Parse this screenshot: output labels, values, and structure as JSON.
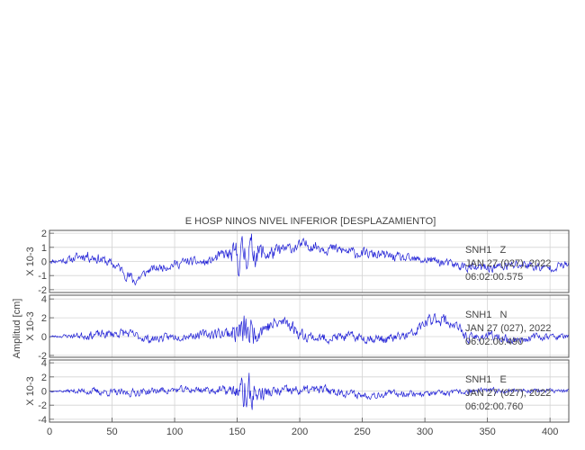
{
  "chart_data": {
    "type": "line",
    "title": "E HOSP NINOS NIVEL INFERIOR [DESPLAZAMIENTO]",
    "ylabel": "Amplitud [cm]",
    "xlabel": "",
    "xlim": [
      0,
      415
    ],
    "xticks": [
      0,
      50,
      100,
      150,
      200,
      250,
      300,
      350,
      400
    ],
    "grid": true,
    "line_color": "#1f1fd6",
    "panels": [
      {
        "channel": "SNH1",
        "component": "Z",
        "date": "JAN 27 (027), 2022",
        "time": "06:02:00.575",
        "scale_label": "X 10-3",
        "ylim": [
          -2.2,
          2.2
        ],
        "yticks": [
          -2,
          -1,
          0,
          1,
          2
        ],
        "seed": 11,
        "env": [
          [
            0,
            0.15
          ],
          [
            10,
            0.25
          ],
          [
            30,
            0.45
          ],
          [
            55,
            0.35
          ],
          [
            66,
            0.5
          ],
          [
            80,
            0.3
          ],
          [
            100,
            0.35
          ],
          [
            130,
            0.35
          ],
          [
            145,
            0.6
          ],
          [
            150,
            1.4
          ],
          [
            160,
            1.3
          ],
          [
            172,
            0.7
          ],
          [
            190,
            0.45
          ],
          [
            210,
            0.45
          ],
          [
            250,
            0.4
          ],
          [
            290,
            0.35
          ],
          [
            330,
            0.35
          ],
          [
            370,
            0.4
          ],
          [
            415,
            0.3
          ]
        ],
        "trend": [
          [
            0,
            0
          ],
          [
            15,
            0.1
          ],
          [
            28,
            0.45
          ],
          [
            40,
            0.2
          ],
          [
            55,
            -0.4
          ],
          [
            68,
            -1.4
          ],
          [
            80,
            -0.6
          ],
          [
            95,
            -0.3
          ],
          [
            110,
            0
          ],
          [
            125,
            -0.1
          ],
          [
            140,
            0.5
          ],
          [
            150,
            0.3
          ],
          [
            160,
            0.8
          ],
          [
            175,
            0.5
          ],
          [
            190,
            0.9
          ],
          [
            205,
            1.2
          ],
          [
            225,
            0.9
          ],
          [
            245,
            0.6
          ],
          [
            270,
            0.4
          ],
          [
            290,
            0.1
          ],
          [
            305,
            0.1
          ],
          [
            320,
            -0.2
          ],
          [
            340,
            -0.5
          ],
          [
            360,
            -0.4
          ],
          [
            380,
            -0.2
          ],
          [
            395,
            -0.5
          ],
          [
            415,
            -0.2
          ]
        ]
      },
      {
        "channel": "SNH1",
        "component": "N",
        "date": "JAN 27 (027), 2022",
        "time": "06:02:00.490",
        "scale_label": "X 10-3",
        "ylim": [
          -2.2,
          4.4
        ],
        "yticks": [
          -2,
          0,
          2,
          4
        ],
        "seed": 23,
        "env": [
          [
            0,
            0.12
          ],
          [
            10,
            0.18
          ],
          [
            30,
            0.5
          ],
          [
            60,
            0.55
          ],
          [
            90,
            0.45
          ],
          [
            120,
            0.5
          ],
          [
            145,
            0.8
          ],
          [
            155,
            2.2
          ],
          [
            162,
            1.6
          ],
          [
            172,
            0.9
          ],
          [
            190,
            0.8
          ],
          [
            210,
            0.6
          ],
          [
            240,
            0.55
          ],
          [
            270,
            0.55
          ],
          [
            300,
            0.7
          ],
          [
            315,
            0.8
          ],
          [
            335,
            0.55
          ],
          [
            370,
            0.5
          ],
          [
            415,
            0.3
          ]
        ],
        "trend": [
          [
            0,
            0
          ],
          [
            20,
            0.1
          ],
          [
            40,
            0.2
          ],
          [
            60,
            0.4
          ],
          [
            80,
            -0.3
          ],
          [
            100,
            0
          ],
          [
            120,
            0.2
          ],
          [
            140,
            0.4
          ],
          [
            150,
            0.5
          ],
          [
            160,
            0.4
          ],
          [
            170,
            0.9
          ],
          [
            180,
            1.3
          ],
          [
            190,
            1.6
          ],
          [
            200,
            0.3
          ],
          [
            215,
            -0.2
          ],
          [
            240,
            0
          ],
          [
            270,
            -0.3
          ],
          [
            290,
            0.2
          ],
          [
            300,
            1.4
          ],
          [
            310,
            2.0
          ],
          [
            322,
            1.4
          ],
          [
            335,
            -0.2
          ],
          [
            350,
            0.1
          ],
          [
            370,
            -0.4
          ],
          [
            390,
            0
          ],
          [
            415,
            0
          ]
        ]
      },
      {
        "channel": "SNH1",
        "component": "E",
        "date": "JAN 27 (027), 2022",
        "time": "06:02:00.760",
        "scale_label": "X 10-3",
        "ylim": [
          -4.4,
          4.4
        ],
        "yticks": [
          -4,
          -2,
          0,
          2,
          4
        ],
        "seed": 37,
        "env": [
          [
            0,
            0.12
          ],
          [
            10,
            0.2
          ],
          [
            30,
            0.55
          ],
          [
            60,
            0.6
          ],
          [
            100,
            0.55
          ],
          [
            130,
            0.6
          ],
          [
            145,
            0.8
          ],
          [
            152,
            1.5
          ],
          [
            157,
            3.8
          ],
          [
            165,
            1.6
          ],
          [
            175,
            0.9
          ],
          [
            200,
            0.8
          ],
          [
            240,
            0.6
          ],
          [
            280,
            0.55
          ],
          [
            320,
            0.45
          ],
          [
            360,
            0.4
          ],
          [
            415,
            0.3
          ]
        ],
        "trend": [
          [
            0,
            0
          ],
          [
            30,
            0
          ],
          [
            60,
            -0.3
          ],
          [
            90,
            0.1
          ],
          [
            120,
            0.2
          ],
          [
            150,
            0
          ],
          [
            160,
            -0.5
          ],
          [
            190,
            0
          ],
          [
            220,
            0.2
          ],
          [
            250,
            -0.6
          ],
          [
            280,
            -0.3
          ],
          [
            310,
            -0.4
          ],
          [
            340,
            0
          ],
          [
            370,
            0.1
          ],
          [
            415,
            0
          ]
        ]
      }
    ]
  }
}
